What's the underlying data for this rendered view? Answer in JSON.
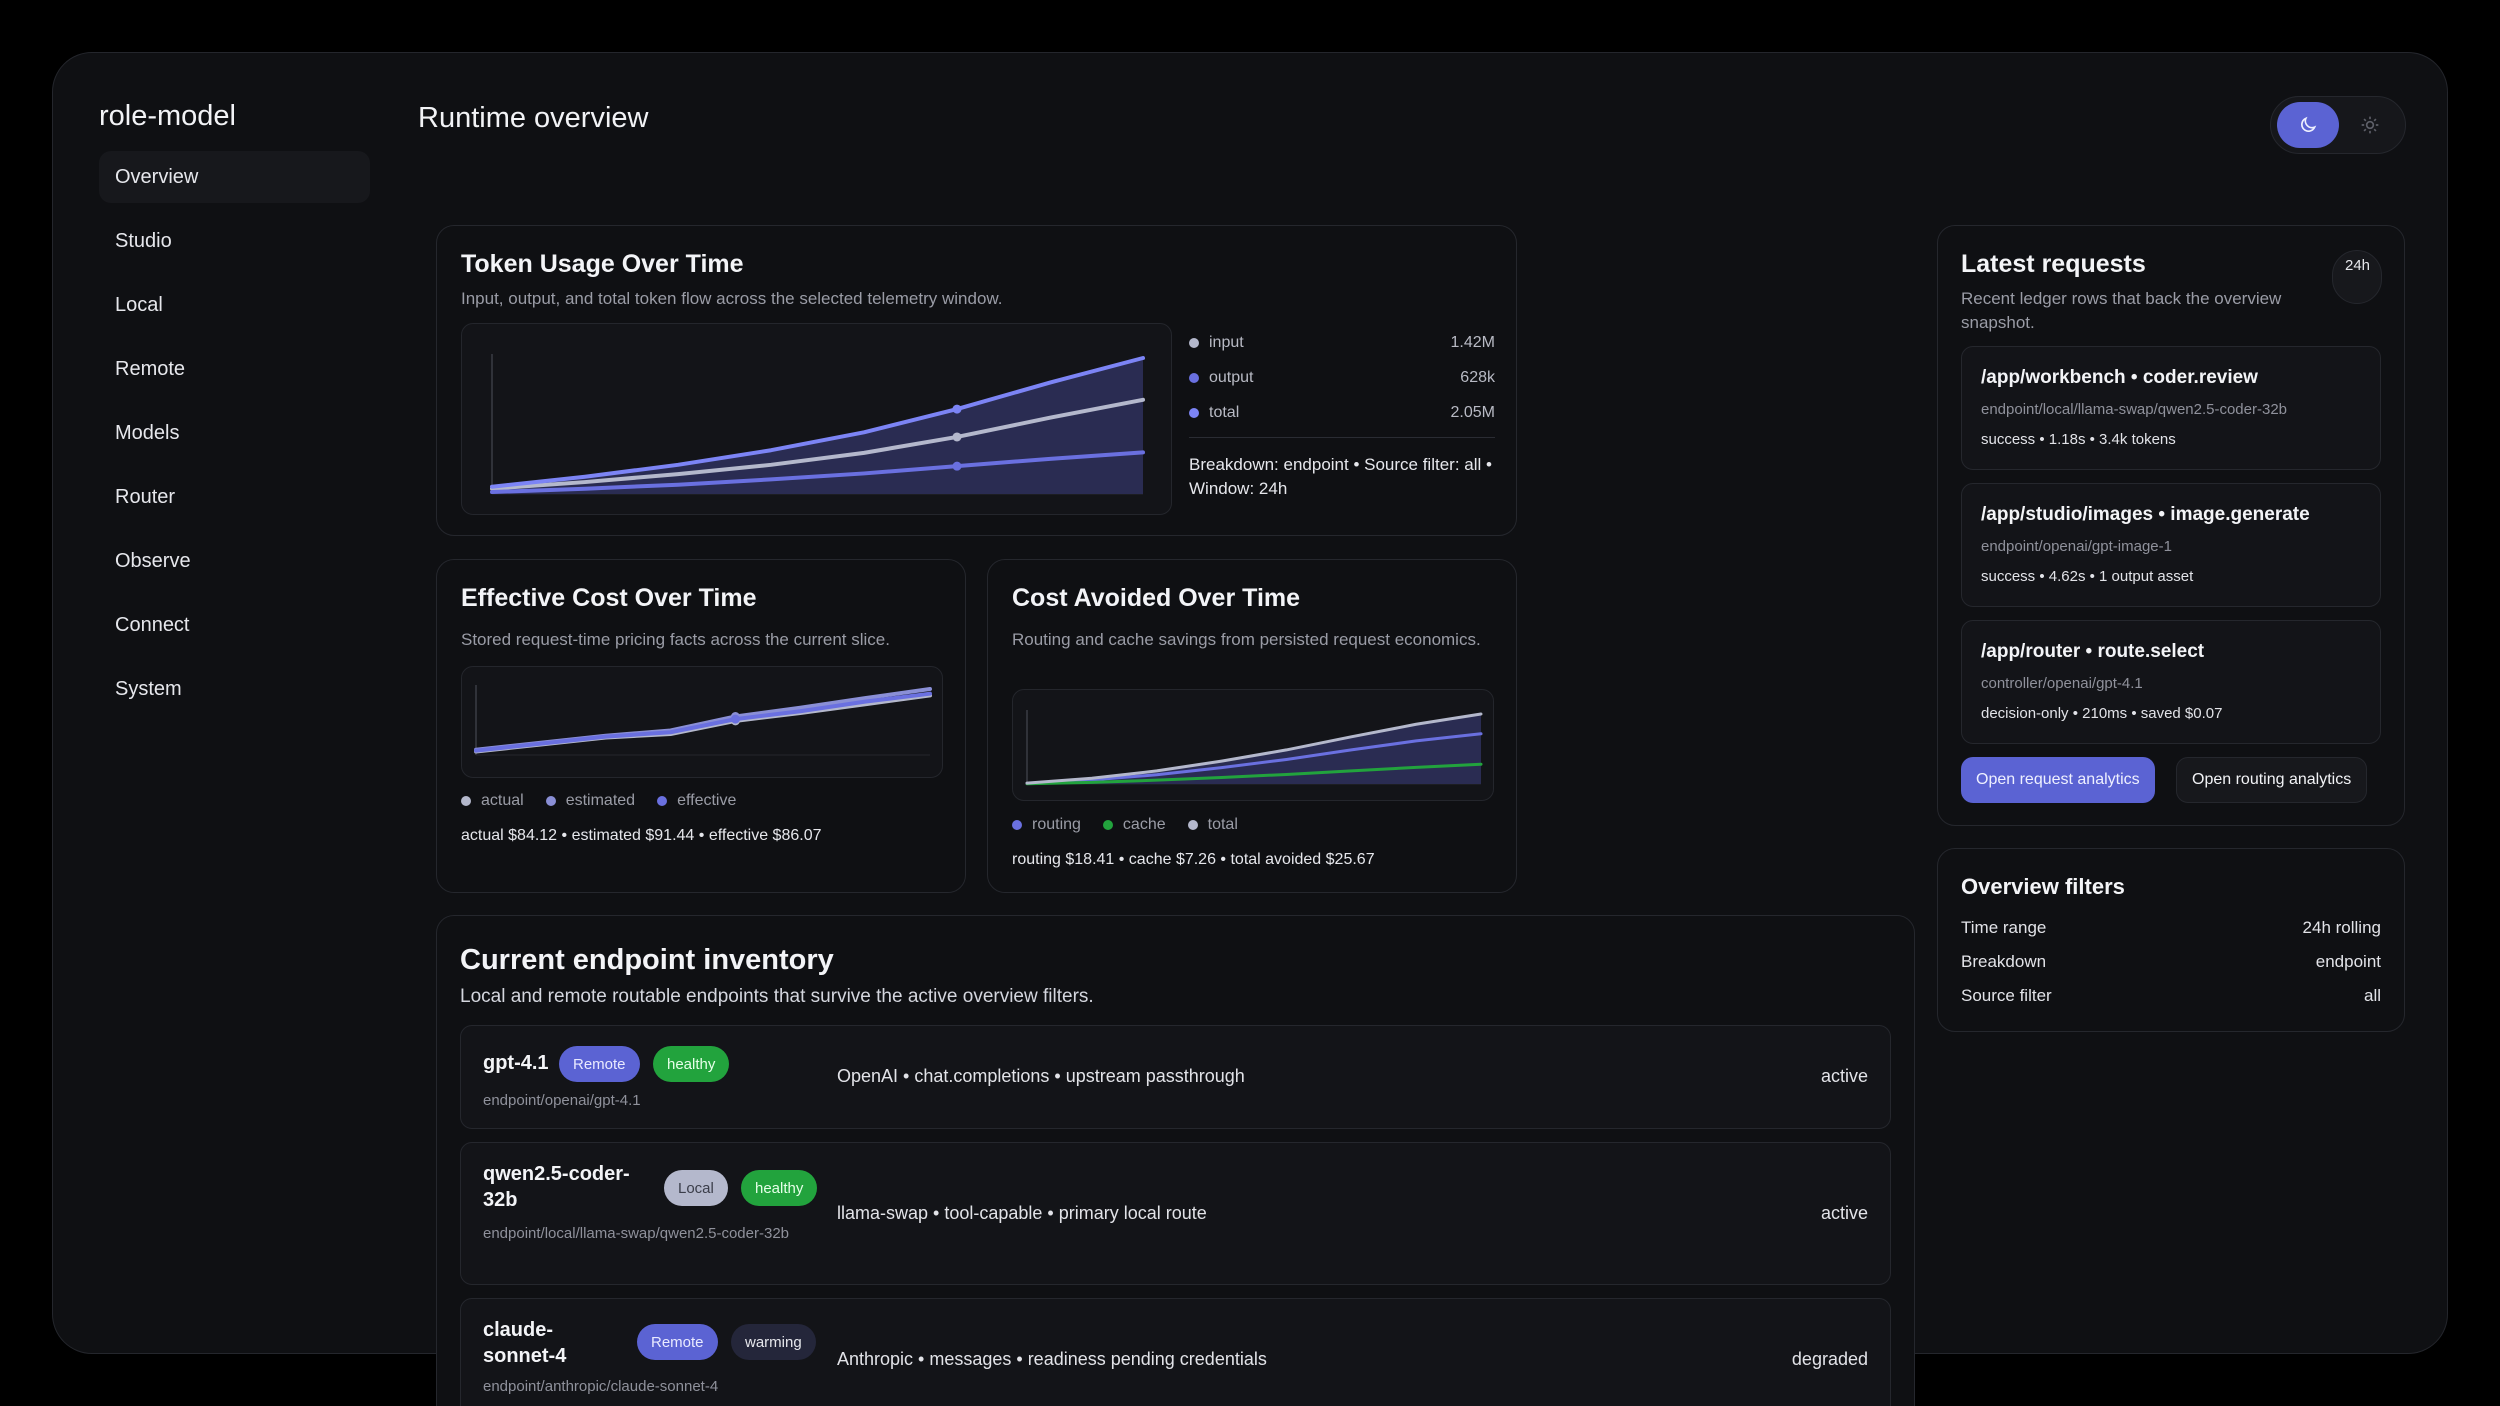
{
  "app": {
    "brand": "role-model",
    "page_title": "Runtime overview"
  },
  "nav": {
    "items": [
      {
        "label": "Overview",
        "active": true
      },
      {
        "label": "Studio"
      },
      {
        "label": "Local"
      },
      {
        "label": "Remote"
      },
      {
        "label": "Models"
      },
      {
        "label": "Router"
      },
      {
        "label": "Observe"
      },
      {
        "label": "Connect"
      },
      {
        "label": "System"
      }
    ]
  },
  "theme": {
    "selected": "dark",
    "icons": [
      "moon-icon",
      "sun-icon"
    ]
  },
  "colors": {
    "accent": "#5b63d3",
    "healthy": "#22a33d",
    "input": "#b4b8cc",
    "output": "#6a70e0",
    "total": "#7c84f5",
    "cache": "#22a33d"
  },
  "token_usage": {
    "title": "Token Usage Over Time",
    "subtitle": "Input, output, and total token flow across the selected telemetry window.",
    "legend": [
      {
        "name": "input",
        "value": "1.42M"
      },
      {
        "name": "output",
        "value": "628k"
      },
      {
        "name": "total",
        "value": "2.05M"
      }
    ],
    "breakdown": "Breakdown: endpoint • Source filter: all • Window: 24h"
  },
  "effective_cost": {
    "title": "Effective Cost Over Time",
    "subtitle": "Stored request-time pricing facts across the current slice.",
    "legend": [
      "actual",
      "estimated",
      "effective"
    ],
    "summary": "actual $84.12 • estimated $91.44 • effective $86.07"
  },
  "cost_avoided": {
    "title": "Cost Avoided Over Time",
    "subtitle": "Routing and cache savings from persisted request economics.",
    "legend": [
      "routing",
      "cache",
      "total"
    ],
    "summary": "routing $18.41 • cache $7.26 • total avoided $25.67"
  },
  "chart_data": [
    {
      "type": "area",
      "title": "Token Usage Over Time",
      "x": [
        0,
        1,
        2,
        3,
        4,
        5,
        6,
        7
      ],
      "series": [
        {
          "name": "input",
          "values": [
            0.08,
            0.18,
            0.3,
            0.44,
            0.62,
            0.86,
            1.15,
            1.42
          ]
        },
        {
          "name": "output",
          "values": [
            0.03,
            0.08,
            0.14,
            0.22,
            0.31,
            0.42,
            0.53,
            0.628
          ]
        },
        {
          "name": "total",
          "values": [
            0.11,
            0.26,
            0.44,
            0.66,
            0.93,
            1.28,
            1.68,
            2.05
          ]
        }
      ]
    },
    {
      "type": "line",
      "title": "Effective Cost Over Time",
      "x": [
        0,
        1,
        2,
        3,
        4,
        5,
        6,
        7
      ],
      "series": [
        {
          "name": "actual",
          "values": [
            20,
            28,
            36,
            40,
            55,
            64,
            74,
            84.12
          ]
        },
        {
          "name": "estimated",
          "values": [
            22,
            30,
            38,
            44,
            60,
            70,
            81,
            91.44
          ]
        },
        {
          "name": "effective",
          "values": [
            21,
            29,
            37,
            42,
            57,
            66,
            77,
            86.07
          ]
        }
      ]
    },
    {
      "type": "area",
      "title": "Cost Avoided Over Time",
      "x": [
        0,
        1,
        2,
        3,
        4,
        5,
        6,
        7
      ],
      "series": [
        {
          "name": "routing",
          "values": [
            0.2,
            1.5,
            3.4,
            6.0,
            9.0,
            12.5,
            15.8,
            18.41
          ]
        },
        {
          "name": "cache",
          "values": [
            0.1,
            0.6,
            1.4,
            2.4,
            3.5,
            4.8,
            6.1,
            7.26
          ]
        },
        {
          "name": "total",
          "values": [
            0.3,
            2.1,
            4.8,
            8.4,
            12.5,
            17.3,
            21.9,
            25.67
          ]
        }
      ]
    }
  ],
  "inventory": {
    "title": "Current endpoint inventory",
    "subtitle": "Local and remote routable endpoints that survive the active overview filters.",
    "rows": [
      {
        "name": "gpt-4.1",
        "path": "endpoint/openai/gpt-4.1",
        "badges": [
          "Remote",
          "healthy"
        ],
        "desc": "OpenAI • chat.completions • upstream passthrough",
        "status": "active"
      },
      {
        "name": "qwen2.5-coder-32b",
        "path": "endpoint/local/llama-swap/qwen2.5-coder-32b",
        "badges": [
          "Local",
          "healthy"
        ],
        "desc": "llama-swap • tool-capable • primary local route",
        "status": "active"
      },
      {
        "name": "claude-sonnet-4",
        "path": "endpoint/anthropic/claude-sonnet-4",
        "badges": [
          "Remote",
          "warming"
        ],
        "desc": "Anthropic • messages • readiness pending credentials",
        "status": "degraded"
      }
    ]
  },
  "latest_requests": {
    "title": "Latest requests",
    "subtitle": "Recent ledger rows that back the overview snapshot.",
    "window": "24h",
    "items": [
      {
        "title": "/app/workbench • coder.review",
        "path": "endpoint/local/llama-swap/qwen2.5-coder-32b",
        "meta": "success • 1.18s • 3.4k tokens"
      },
      {
        "title": "/app/studio/images • image.generate",
        "path": "endpoint/openai/gpt-image-1",
        "meta": "success • 4.62s • 1 output asset"
      },
      {
        "title": "/app/router • route.select",
        "path": "controller/openai/gpt-4.1",
        "meta": "decision-only • 210ms • saved $0.07"
      }
    ],
    "open_request_analytics": "Open request analytics",
    "open_routing_analytics": "Open routing analytics"
  },
  "overview_filters": {
    "title": "Overview filters",
    "rows": [
      {
        "label": "Time range",
        "value": "24h rolling"
      },
      {
        "label": "Breakdown",
        "value": "endpoint"
      },
      {
        "label": "Source filter",
        "value": "all"
      }
    ]
  }
}
